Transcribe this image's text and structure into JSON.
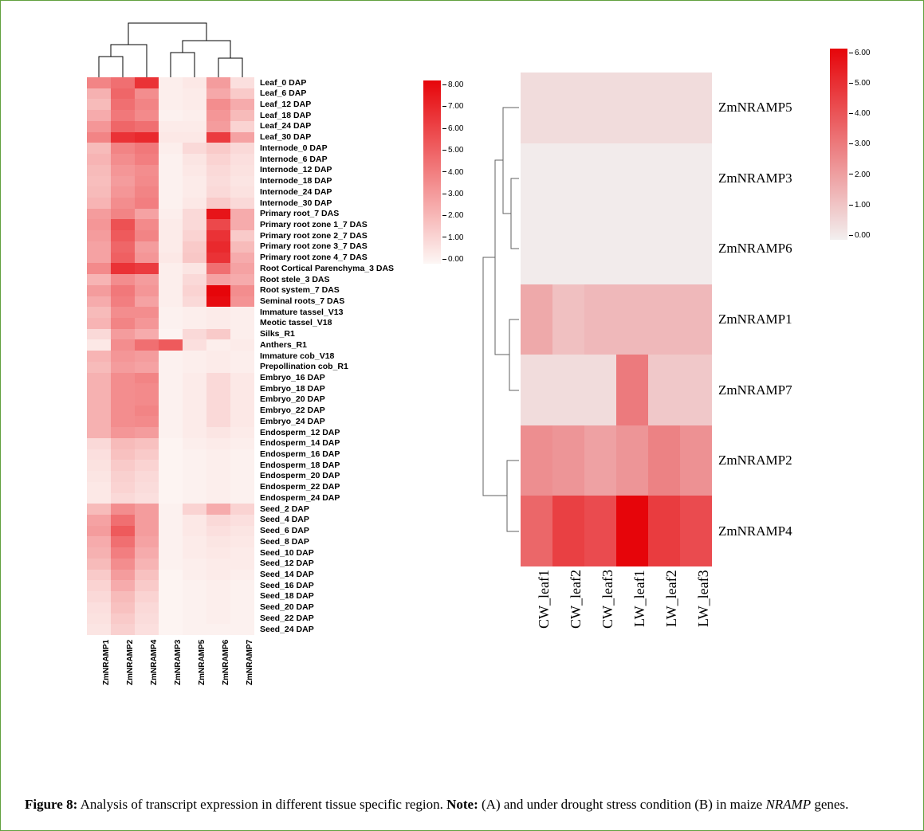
{
  "caption": {
    "prefix": "Figure 8:",
    "text_1": " Analysis of transcript expression in different tissue specific region. ",
    "note_label": "Note:",
    "text_2": " (A) and under drought stress condition (B) in maize ",
    "italic": "NRAMP",
    "text_3": " genes."
  },
  "panel_a": {
    "type": "heatmap",
    "row_labels": [
      "Leaf_0 DAP",
      "Leaf_6 DAP",
      "Leaf_12 DAP",
      "Leaf_18 DAP",
      "Leaf_24 DAP",
      "Leaf_30 DAP",
      "Internode_0 DAP",
      "Internode_6 DAP",
      "Internode_12 DAP",
      "Internode_18 DAP",
      "Internode_24 DAP",
      "Internode_30 DAP",
      "Primary root_7 DAS",
      "Primary root zone 1_7 DAS",
      "Primary root zone 2_7 DAS",
      "Primary root zone 3_7 DAS",
      "Primary root zone 4_7 DAS",
      "Root Cortical Parenchyma_3 DAS",
      "Root stele_3 DAS",
      "Root system_7 DAS",
      "Seminal roots_7 DAS",
      "Immature tassel_V13",
      "Meotic tassel_V18",
      "Silks_R1",
      "Anthers_R1",
      "Immature cob_V18",
      "Prepollination cob_R1",
      "Embryo_16 DAP",
      "Embryo_18 DAP",
      "Embryo_20 DAP",
      "Embryo_22 DAP",
      "Embryo_24 DAP",
      "Endosperm_12 DAP",
      "Endosperm_14 DAP",
      "Endosperm_16 DAP",
      "Endosperm_18 DAP",
      "Endosperm_20 DAP",
      "Endosperm_22 DAP",
      "Endosperm_24 DAP",
      "Seed_2 DAP",
      "Seed_4 DAP",
      "Seed_6 DAP",
      "Seed_8 DAP",
      "Seed_10 DAP",
      "Seed_12 DAP",
      "Seed_14 DAP",
      "Seed_16 DAP",
      "Seed_18 DAP",
      "Seed_20 DAP",
      "Seed_22 DAP",
      "Seed_24 DAP"
    ],
    "col_labels": [
      "ZmNRAMP1",
      "ZmNRAMP2",
      "ZmNRAMP4",
      "ZmNRAMP3",
      "ZmNRAMP5",
      "ZmNRAMP6",
      "ZmNRAMP7"
    ],
    "col_order_after_cluster": [
      0,
      1,
      2,
      3,
      4,
      5,
      6
    ],
    "data": [
      [
        3.8,
        4.5,
        6.5,
        0.3,
        0.5,
        3.0,
        0.8
      ],
      [
        2.3,
        4.8,
        3.5,
        0.3,
        0.4,
        2.6,
        1.5
      ],
      [
        2.0,
        4.5,
        3.8,
        0.3,
        0.4,
        3.5,
        2.5
      ],
      [
        2.5,
        4.2,
        3.6,
        0.2,
        0.3,
        3.2,
        2.0
      ],
      [
        3.2,
        4.8,
        4.5,
        0.4,
        0.4,
        3.0,
        1.2
      ],
      [
        3.8,
        6.5,
        6.8,
        0.5,
        0.5,
        6.2,
        2.8
      ],
      [
        2.0,
        3.8,
        4.2,
        0.3,
        1.0,
        1.5,
        1.0
      ],
      [
        2.2,
        3.5,
        4.0,
        0.2,
        0.6,
        1.2,
        0.8
      ],
      [
        2.0,
        3.2,
        3.5,
        0.2,
        0.5,
        1.0,
        0.7
      ],
      [
        1.9,
        3.0,
        3.6,
        0.2,
        0.4,
        0.9,
        0.6
      ],
      [
        2.0,
        3.2,
        3.8,
        0.2,
        0.4,
        1.0,
        0.7
      ],
      [
        2.2,
        3.5,
        4.0,
        0.2,
        0.5,
        1.5,
        1.0
      ],
      [
        3.0,
        3.8,
        2.8,
        0.3,
        1.0,
        7.5,
        2.5
      ],
      [
        3.2,
        5.5,
        3.6,
        0.4,
        1.0,
        5.8,
        2.5
      ],
      [
        3.0,
        5.2,
        3.8,
        0.4,
        1.2,
        6.5,
        1.5
      ],
      [
        2.8,
        4.8,
        3.0,
        0.4,
        1.5,
        6.8,
        2.0
      ],
      [
        2.8,
        5.0,
        3.2,
        0.5,
        1.6,
        6.5,
        2.5
      ],
      [
        3.6,
        6.5,
        6.2,
        0.3,
        0.6,
        4.5,
        2.8
      ],
      [
        2.2,
        3.5,
        3.0,
        0.3,
        1.0,
        2.8,
        2.5
      ],
      [
        3.0,
        4.2,
        3.2,
        0.3,
        1.2,
        8.0,
        3.5
      ],
      [
        2.5,
        4.0,
        2.8,
        0.3,
        1.0,
        7.8,
        3.3
      ],
      [
        2.0,
        3.5,
        3.5,
        0.2,
        0.3,
        0.4,
        0.3
      ],
      [
        2.2,
        3.8,
        3.2,
        0.2,
        0.3,
        0.4,
        0.3
      ],
      [
        1.0,
        3.0,
        2.5,
        0.1,
        1.0,
        1.5,
        0.3
      ],
      [
        0.5,
        3.5,
        4.5,
        5.2,
        0.8,
        0.3,
        0.4
      ],
      [
        2.2,
        3.2,
        3.0,
        0.2,
        0.3,
        0.4,
        0.3
      ],
      [
        2.0,
        3.0,
        2.8,
        0.2,
        0.3,
        0.4,
        0.3
      ],
      [
        2.3,
        3.5,
        3.8,
        0.2,
        0.4,
        1.0,
        0.5
      ],
      [
        2.3,
        3.5,
        3.6,
        0.2,
        0.4,
        1.0,
        0.5
      ],
      [
        2.3,
        3.5,
        3.6,
        0.2,
        0.4,
        1.0,
        0.5
      ],
      [
        2.3,
        3.5,
        3.8,
        0.2,
        0.4,
        1.0,
        0.5
      ],
      [
        2.3,
        3.5,
        3.6,
        0.2,
        0.4,
        1.0,
        0.5
      ],
      [
        2.3,
        3.2,
        3.0,
        0.2,
        0.4,
        0.6,
        0.4
      ],
      [
        1.0,
        2.0,
        1.8,
        0.1,
        0.3,
        0.4,
        0.3
      ],
      [
        0.8,
        1.8,
        1.5,
        0.1,
        0.2,
        0.3,
        0.2
      ],
      [
        0.7,
        1.5,
        1.2,
        0.1,
        0.2,
        0.3,
        0.2
      ],
      [
        0.6,
        1.3,
        1.0,
        0.1,
        0.2,
        0.3,
        0.2
      ],
      [
        0.5,
        1.2,
        0.9,
        0.1,
        0.2,
        0.3,
        0.2
      ],
      [
        0.5,
        1.0,
        0.8,
        0.1,
        0.2,
        0.3,
        0.2
      ],
      [
        2.0,
        3.5,
        3.0,
        0.2,
        1.2,
        2.5,
        1.2
      ],
      [
        2.8,
        4.5,
        3.0,
        0.2,
        0.5,
        1.0,
        0.8
      ],
      [
        3.0,
        5.2,
        3.0,
        0.2,
        0.5,
        0.8,
        0.6
      ],
      [
        2.5,
        4.5,
        2.8,
        0.2,
        0.4,
        0.6,
        0.5
      ],
      [
        2.3,
        4.0,
        2.5,
        0.2,
        0.4,
        0.5,
        0.4
      ],
      [
        2.0,
        3.5,
        2.2,
        0.2,
        0.3,
        0.4,
        0.4
      ],
      [
        1.5,
        3.0,
        1.8,
        0.1,
        0.3,
        0.4,
        0.3
      ],
      [
        1.2,
        2.5,
        1.5,
        0.1,
        0.2,
        0.3,
        0.2
      ],
      [
        1.0,
        2.0,
        1.2,
        0.1,
        0.2,
        0.3,
        0.2
      ],
      [
        0.8,
        1.8,
        1.0,
        0.1,
        0.2,
        0.3,
        0.2
      ],
      [
        0.7,
        1.5,
        0.9,
        0.1,
        0.2,
        0.3,
        0.2
      ],
      [
        0.6,
        1.3,
        0.8,
        0.1,
        0.2,
        0.2,
        0.2
      ]
    ],
    "vmin": 0.0,
    "vmax": 8.0,
    "colorbar_ticks": [
      "8.00",
      "7.00",
      "6.00",
      "5.00",
      "4.00",
      "3.00",
      "2.00",
      "1.00",
      "0.00"
    ],
    "color_low": "#fdf7f5",
    "color_high": "#e6050a",
    "background_color": "#ffffff",
    "row_label_fontsize": 10.5,
    "col_label_fontsize": 10,
    "row_label_fontweight": "bold",
    "col_label_fontweight": "bold",
    "row_label_fontfamily": "Arial",
    "col_label_fontfamily": "Arial",
    "dendro_color": "#000000",
    "dendro_linewidth": 1
  },
  "panel_b": {
    "type": "heatmap",
    "row_labels": [
      "ZmNRAMP5",
      "ZmNRAMP3",
      "ZmNRAMP6",
      "ZmNRAMP1",
      "ZmNRAMP7",
      "ZmNRAMP2",
      "ZmNRAMP4"
    ],
    "col_labels": [
      "CW_leaf1",
      "CW_leaf2",
      "CW_leaf3",
      "LW_leaf1",
      "LW_leaf2",
      "LW_leaf3"
    ],
    "data": [
      [
        0.5,
        0.5,
        0.5,
        0.5,
        0.5,
        0.5
      ],
      [
        0.1,
        0.1,
        0.1,
        0.1,
        0.1,
        0.1
      ],
      [
        0.1,
        0.1,
        0.1,
        0.1,
        0.1,
        0.1
      ],
      [
        1.8,
        1.2,
        1.4,
        1.4,
        1.4,
        1.4
      ],
      [
        0.5,
        0.5,
        0.5,
        3.0,
        1.0,
        1.0
      ],
      [
        2.5,
        2.3,
        2.0,
        2.3,
        2.8,
        2.4
      ],
      [
        3.5,
        4.5,
        4.2,
        6.0,
        4.6,
        4.2
      ]
    ],
    "vmin": 0.0,
    "vmax": 6.0,
    "colorbar_ticks": [
      "6.00",
      "5.00",
      "4.00",
      "3.00",
      "2.00",
      "1.00",
      "0.00"
    ],
    "color_low": "#f2efef",
    "color_high": "#e6050a",
    "background_color": "#ffffff",
    "row_label_fontsize": 17,
    "col_label_fontsize": 18,
    "row_label_fontfamily": "Times New Roman",
    "col_label_fontfamily": "Times New Roman",
    "dendro_color": "#606060",
    "dendro_linewidth": 1
  }
}
